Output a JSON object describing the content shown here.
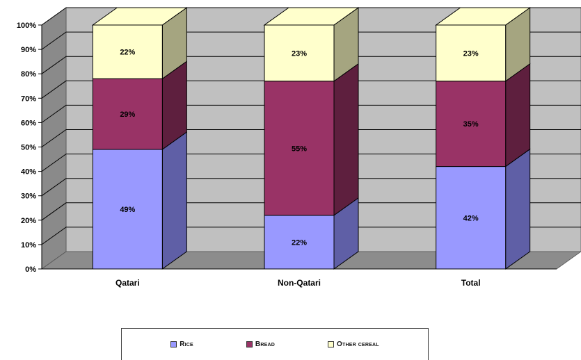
{
  "chart_data": {
    "type": "bar",
    "stacked": true,
    "three_d": true,
    "categories": [
      "Qatari",
      "Non-Qatari",
      "Total"
    ],
    "series": [
      {
        "name": "Rice",
        "values": [
          49,
          22,
          42
        ],
        "color": "#9999ff",
        "side_color": "#5f5fa6"
      },
      {
        "name": "Bread",
        "values": [
          29,
          55,
          35
        ],
        "color": "#993366",
        "side_color": "#5e1f3e"
      },
      {
        "name": "Other cereal",
        "values": [
          22,
          23,
          23
        ],
        "color": "#ffffcc",
        "side_color": "#a5a580"
      }
    ],
    "data_labels": [
      [
        "49%",
        "22%",
        "42%"
      ],
      [
        "29%",
        "55%",
        "35%"
      ],
      [
        "22%",
        "23%",
        "23%"
      ]
    ],
    "y_ticks": [
      "0%",
      "10%",
      "20%",
      "30%",
      "40%",
      "50%",
      "60%",
      "70%",
      "80%",
      "90%",
      "100%"
    ],
    "ylim": [
      0,
      100
    ],
    "grid": true,
    "legend_position": "bottom",
    "wall_color": "#c0c0c0",
    "floor_color": "#8c8c8c"
  }
}
